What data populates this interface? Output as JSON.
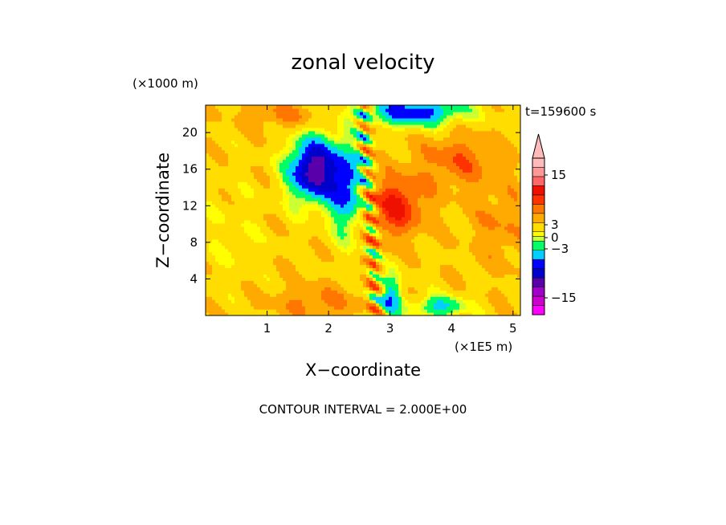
{
  "chart_data": {
    "type": "heatmap",
    "title": "zonal velocity",
    "xlabel": "X−coordinate",
    "ylabel": "Z−coordinate",
    "x_unit": "(×1E5 m)",
    "y_unit": "(×1000 m)",
    "time_label": "t=159600 s",
    "footer": "CONTOUR INTERVAL = 2.000E+00",
    "xlim": [
      0,
      5.12
    ],
    "ylim": [
      0,
      23
    ],
    "x_ticks": [
      1,
      2,
      3,
      4,
      5
    ],
    "y_ticks": [
      4,
      8,
      12,
      16,
      20
    ],
    "x_tick_labels": [
      "1",
      "2",
      "3",
      "4",
      "5"
    ],
    "y_tick_labels": [
      "4",
      "8",
      "12",
      "16",
      "20"
    ],
    "contour_interval": 2.0,
    "colorbar": {
      "levels": [
        -17,
        -15,
        -13,
        -11,
        -9,
        -7,
        -5,
        -3,
        -1,
        0,
        1,
        3,
        5,
        7,
        9,
        11,
        13,
        15,
        17
      ],
      "tick_labels": [
        {
          "value": 15,
          "text": "15"
        },
        {
          "value": 3,
          "text": "3"
        },
        {
          "value": 0,
          "text": "0"
        },
        {
          "value": -3,
          "text": "−3"
        },
        {
          "value": -15,
          "text": "−15"
        }
      ],
      "colors": [
        "#ff00ff",
        "#cc00cc",
        "#a000c8",
        "#5a00aa",
        "#0000cd",
        "#0000ff",
        "#00cfff",
        "#00ff66",
        "#ccff33",
        "#ffff00",
        "#ffdd00",
        "#ffaa00",
        "#ff7700",
        "#ff3300",
        "#ee1100",
        "#ff6666",
        "#ff9999",
        "#ffbbbb"
      ],
      "extend": "max"
    }
  }
}
